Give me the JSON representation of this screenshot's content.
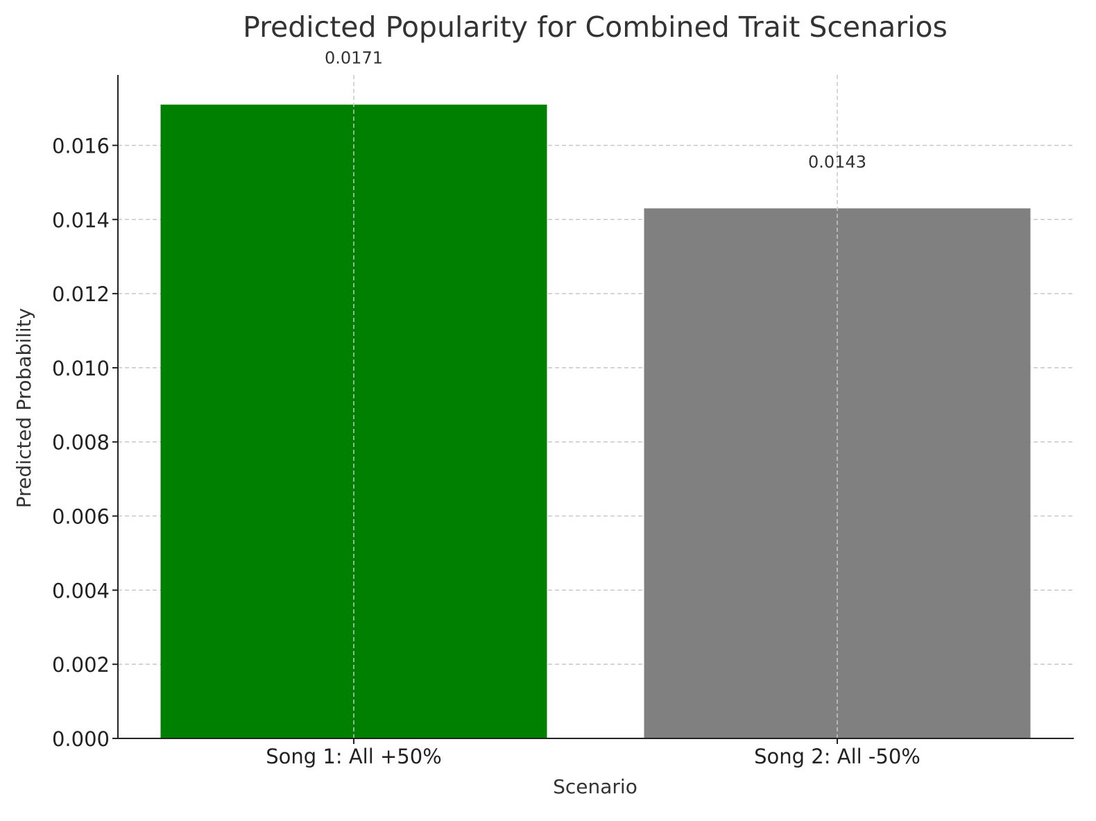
{
  "chart_data": {
    "type": "bar",
    "title": "Predicted Popularity for Combined Trait Scenarios",
    "xlabel": "Scenario",
    "ylabel": "Predicted Probability",
    "categories": [
      "Song 1: All +50%",
      "Song 2: All -50%"
    ],
    "values": [
      0.0171,
      0.0143
    ],
    "data_labels": [
      "0.0171",
      "0.0143"
    ],
    "colors": [
      "#008000",
      "#808080"
    ],
    "ylim": [
      0,
      0.0179
    ],
    "yticks": [
      0.0,
      0.002,
      0.004,
      0.006,
      0.008,
      0.01,
      0.012,
      0.014,
      0.016
    ],
    "ytick_labels": [
      "0.000",
      "0.002",
      "0.004",
      "0.006",
      "0.008",
      "0.010",
      "0.012",
      "0.014",
      "0.016"
    ],
    "grid": true,
    "legend": "none"
  }
}
